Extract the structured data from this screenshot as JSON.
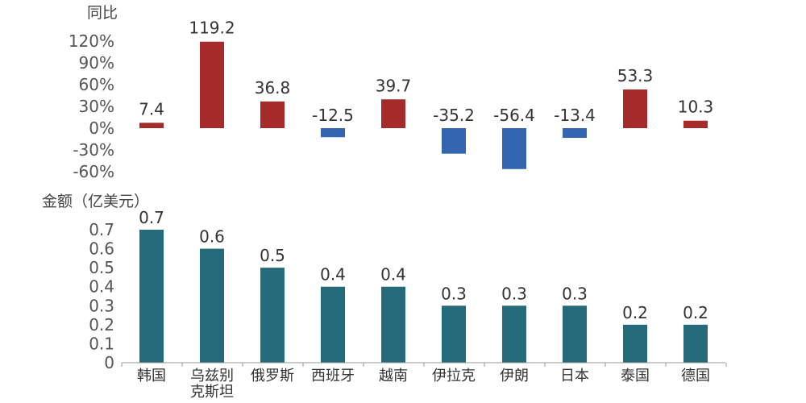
{
  "chart_data": [
    {
      "type": "bar",
      "ylabel": "同比",
      "categories": [
        "韩国",
        "乌兹别克斯坦",
        "俄罗斯",
        "西班牙",
        "越南",
        "伊拉克",
        "伊朗",
        "日本",
        "泰国",
        "德国"
      ],
      "values": [
        7.4,
        119.2,
        36.8,
        -12.5,
        39.7,
        -35.2,
        -56.4,
        -13.4,
        53.3,
        10.3
      ],
      "data_labels": [
        "7.4",
        "119.2",
        "36.8",
        "-12.5",
        "39.7",
        "-35.2",
        "-56.4",
        "-13.4",
        "53.3",
        "10.3"
      ],
      "ylim": [
        -60,
        120
      ],
      "yticks": [
        "120%",
        "90%",
        "60%",
        "30%",
        "0%",
        "-30%",
        "-60%"
      ],
      "ytick_values": [
        120,
        90,
        60,
        30,
        0,
        -30,
        -60
      ],
      "grid": false,
      "colors": {
        "positive": "#A52A2A",
        "negative": "#3466B0"
      }
    },
    {
      "type": "bar",
      "ylabel": "金额（亿美元）",
      "categories": [
        "韩国",
        "乌兹别克斯坦",
        "俄罗斯",
        "西班牙",
        "越南",
        "伊拉克",
        "伊朗",
        "日本",
        "泰国",
        "德国"
      ],
      "category_lines": [
        [
          "韩国"
        ],
        [
          "乌兹别",
          "克斯坦"
        ],
        [
          "俄罗斯"
        ],
        [
          "西班牙"
        ],
        [
          "越南"
        ],
        [
          "伊拉克"
        ],
        [
          "伊朗"
        ],
        [
          "日本"
        ],
        [
          "泰国"
        ],
        [
          "德国"
        ]
      ],
      "values": [
        0.7,
        0.6,
        0.5,
        0.4,
        0.4,
        0.3,
        0.3,
        0.3,
        0.2,
        0.2
      ],
      "data_labels": [
        "0.7",
        "0.6",
        "0.5",
        "0.4",
        "0.4",
        "0.3",
        "0.3",
        "0.3",
        "0.2",
        "0.2"
      ],
      "ylim": [
        0,
        0.7
      ],
      "yticks": [
        "0.7",
        "0.6",
        "0.5",
        "0.4",
        "0.3",
        "0.2",
        "0.1",
        "0"
      ],
      "ytick_values": [
        0.7,
        0.6,
        0.5,
        0.4,
        0.3,
        0.2,
        0.1,
        0
      ],
      "grid": false,
      "colors": {
        "bar": "#246A78"
      }
    }
  ]
}
